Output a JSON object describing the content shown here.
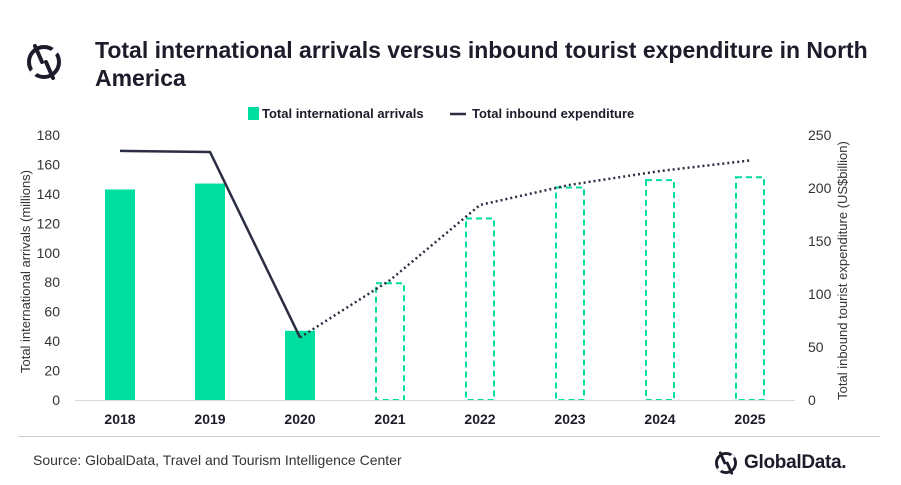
{
  "header": {
    "title": "Total international arrivals versus inbound tourist expenditure in North America",
    "logo_icon": "globaldata-logo-icon"
  },
  "footer": {
    "source": "Source: GlobalData, Travel and Tourism Intelligence Center",
    "brand": "GlobalData."
  },
  "colors": {
    "bar": "#00dea0",
    "line": "#2b2d42",
    "axis": "#d9d9d9"
  },
  "chart_data": {
    "type": "bar",
    "categories": [
      "2018",
      "2019",
      "2020",
      "2021",
      "2022",
      "2023",
      "2024",
      "2025"
    ],
    "series": [
      {
        "name": "Total international arrivals",
        "axis": "left",
        "type": "bar",
        "values": [
          143,
          147,
          47,
          80,
          124,
          145,
          150,
          152
        ],
        "forecast_from": "2021"
      },
      {
        "name": "Total inbound expenditure",
        "axis": "right",
        "type": "line",
        "values": [
          235,
          234,
          59,
          113,
          184,
          203,
          216,
          226
        ],
        "forecast_from": "2020"
      }
    ],
    "ylabel_left": "Total international arrivals (millions)",
    "ylabel_right": "Total inbound tourist expenditure (US$billion)",
    "ylim_left": [
      0,
      180
    ],
    "yticks_left": [
      "0",
      "20",
      "40",
      "60",
      "80",
      "100",
      "120",
      "140",
      "160",
      "180"
    ],
    "ylim_right": [
      0,
      250
    ],
    "yticks_right": [
      "0",
      "50",
      "100",
      "150",
      "200",
      "250"
    ],
    "legend_position": "top-center",
    "grid": false
  }
}
